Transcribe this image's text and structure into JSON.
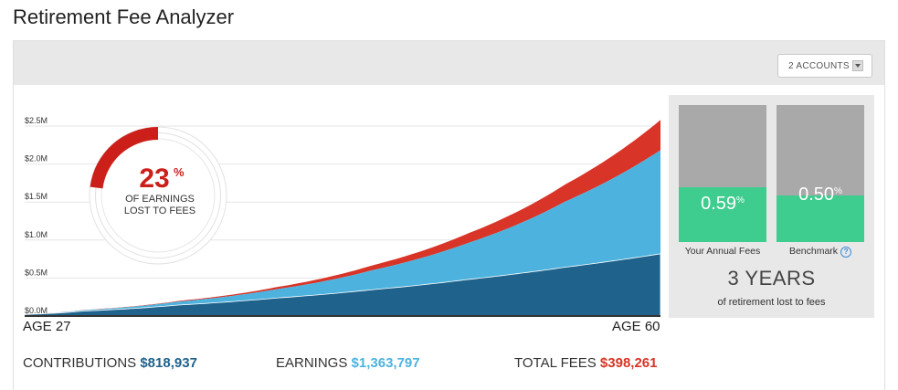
{
  "title": "Retirement Fee Analyzer",
  "accounts_dropdown": {
    "label": "2 ACCOUNTS"
  },
  "chart_data": {
    "type": "area",
    "stacked": true,
    "x_unit": "age",
    "x": [
      27,
      30,
      35,
      40,
      45,
      50,
      55,
      60
    ],
    "xlabel": "",
    "ylabel": "",
    "ylim": [
      0,
      2500000
    ],
    "yticks": [
      0,
      500000,
      1000000,
      1500000,
      2000000,
      2500000
    ],
    "ytick_labels": [
      "$0.0M",
      "$0.5M",
      "$1.0M",
      "$1.5M",
      "$2.0M",
      "$2.5M"
    ],
    "grid": true,
    "series": [
      {
        "values": [
          20000,
          65000,
          145000,
          235000,
          345000,
          480000,
          640000,
          818937
        ],
        "color": "#1f628c"
      },
      {
        "values": [
          2000,
          12000,
          45000,
          115000,
          255000,
          480000,
          860000,
          1363797
        ],
        "color": "#4db3de"
      },
      {
        "values": [
          500,
          2000,
          9000,
          27000,
          64000,
          126000,
          224000,
          398261
        ],
        "color": "#d93428"
      }
    ]
  },
  "axis_x_labels": {
    "start": "AGE 27",
    "end": "AGE 60"
  },
  "donut": {
    "percent": 23,
    "percent_number": "23",
    "percent_sign": "%",
    "line1": "OF EARNINGS",
    "line2": "LOST TO FEES",
    "fill_color": "#cc1f1a"
  },
  "summary": {
    "contributions_label": "CONTRIBUTIONS",
    "contributions_value": "$818,937",
    "earnings_label": "EARNINGS",
    "earnings_value": "$1,363,797",
    "fees_label": "TOTAL FEES",
    "fees_value": "$398,261"
  },
  "fee_bars": {
    "yours": {
      "value": "0.59",
      "unit": "%",
      "caption": "Your Annual Fees",
      "level": 0.59
    },
    "benchmark": {
      "value": "0.50",
      "unit": "%",
      "caption": "Benchmark",
      "level": 0.5
    }
  },
  "years_lost": {
    "value": "3 YEARS",
    "caption": "of retirement lost to fees"
  },
  "colors": {
    "contributions": "#1f628c",
    "earnings": "#4db3de",
    "fees": "#d93428",
    "fee_bar": "#3fcc8f"
  }
}
